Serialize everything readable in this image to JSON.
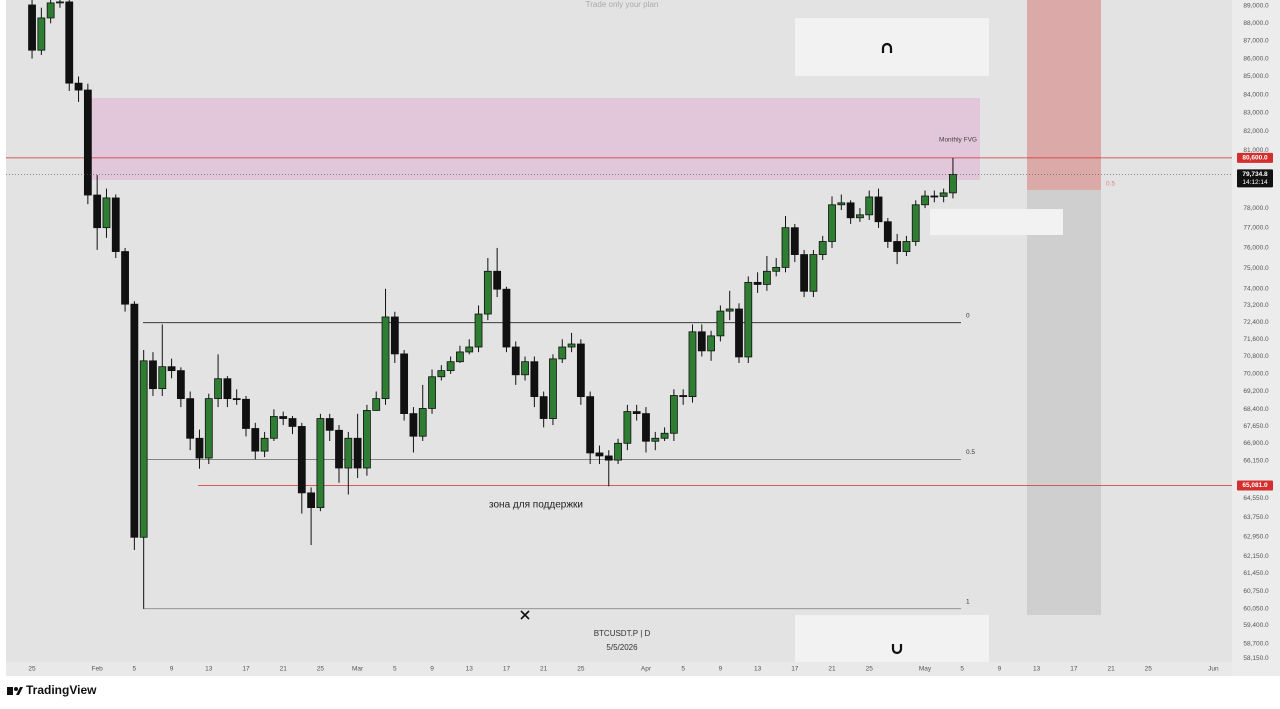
{
  "chart_data": {
    "type": "candlestick",
    "title": "BTCUSDT.P | D",
    "date": "5/5/2026",
    "watermark": "Trade only your plan",
    "annotations": {
      "fvg": "Monthly FVG",
      "support_zone": "зона для поддержки",
      "target": "0.5"
    },
    "x": [
      0,
      1,
      2,
      3,
      4,
      5,
      6,
      7,
      8,
      9,
      10,
      11,
      12,
      13,
      14,
      15,
      16,
      17,
      18,
      19,
      20,
      21,
      22,
      23,
      24,
      25,
      26,
      27,
      28,
      29,
      30,
      31,
      32,
      33,
      34,
      35,
      36,
      37,
      38,
      39,
      40,
      41,
      42,
      43,
      44,
      45,
      46,
      47,
      48,
      49,
      50,
      51,
      52,
      53,
      54,
      55,
      56,
      57,
      58,
      59,
      60,
      61,
      62,
      63,
      64,
      65,
      66,
      67,
      68,
      69,
      70,
      71,
      72,
      73,
      74,
      75,
      76,
      77,
      78,
      79,
      80,
      81,
      82,
      83,
      84,
      85,
      86,
      87,
      88,
      89,
      90,
      91,
      92,
      93,
      94,
      95,
      96,
      97,
      98,
      99
    ],
    "open": [
      89060,
      86470,
      88310,
      89180,
      89240,
      84630,
      84250,
      78670,
      77010,
      78520,
      75820,
      73260,
      62920,
      70600,
      69330,
      70330,
      70150,
      68880,
      67120,
      66260,
      68880,
      69780,
      68880,
      68850,
      67550,
      66560,
      67120,
      68080,
      67990,
      67640,
      64770,
      64150,
      67990,
      67470,
      65830,
      67120,
      65830,
      68350,
      68880,
      72650,
      70920,
      68210,
      67210,
      68440,
      69870,
      70150,
      70560,
      71010,
      71240,
      72790,
      74850,
      73980,
      71240,
      69960,
      70560,
      68970,
      67990,
      70690,
      71240,
      71380,
      68970,
      66480,
      66350,
      66170,
      66900,
      68300,
      68210,
      66990,
      67120,
      67340,
      69020,
      68970,
      71950,
      71060,
      71760,
      72930,
      73030,
      70780,
      74310,
      74210,
      74850,
      75040,
      77010,
      75670,
      73880,
      75670,
      76320,
      78170,
      78270,
      77510,
      77660,
      78570,
      77310,
      76320,
      75820,
      76320,
      78170,
      78620,
      78600,
      78780
    ],
    "high": [
      89350,
      88900,
      89350,
      89350,
      89350,
      85000,
      84600,
      79700,
      79000,
      78700,
      76000,
      73400,
      71100,
      71000,
      72300,
      70700,
      70300,
      69200,
      67500,
      69100,
      70900,
      69900,
      69300,
      69000,
      67800,
      67400,
      68400,
      68300,
      68100,
      67800,
      65000,
      68200,
      68200,
      67700,
      67400,
      68200,
      68600,
      69200,
      74000,
      72900,
      71100,
      68500,
      69500,
      70200,
      70400,
      70800,
      71300,
      71600,
      73200,
      75500,
      76000,
      74100,
      71500,
      70800,
      70800,
      69200,
      70900,
      71600,
      71900,
      71600,
      69200,
      66800,
      66600,
      67100,
      68600,
      68600,
      68500,
      67400,
      67600,
      69300,
      69300,
      72300,
      72300,
      72000,
      73200,
      73900,
      73300,
      74600,
      74800,
      75600,
      75500,
      77600,
      77200,
      75900,
      75900,
      76600,
      78600,
      78700,
      78400,
      78000,
      78900,
      79000,
      77500,
      76700,
      76600,
      78400,
      78900,
      78900,
      79000,
      80600
    ],
    "low": [
      86000,
      86200,
      88000,
      88900,
      84200,
      83600,
      78200,
      75900,
      76500,
      75500,
      72900,
      62400,
      60050,
      69000,
      69000,
      69800,
      68500,
      66600,
      65800,
      66000,
      68500,
      68500,
      68600,
      67200,
      66200,
      66300,
      67000,
      67700,
      67300,
      63900,
      62600,
      64000,
      67000,
      65200,
      64700,
      65400,
      65500,
      68500,
      68600,
      70500,
      67900,
      66500,
      67000,
      68200,
      69700,
      70000,
      70500,
      70900,
      71000,
      72500,
      73600,
      71000,
      69500,
      69700,
      68500,
      67600,
      67700,
      70500,
      71000,
      68600,
      66000,
      66000,
      65050,
      66000,
      66600,
      67900,
      66500,
      66600,
      67000,
      67000,
      68600,
      68700,
      70800,
      70600,
      71500,
      72500,
      70500,
      70500,
      73800,
      73900,
      74600,
      74800,
      75300,
      73600,
      73600,
      75400,
      76000,
      77900,
      77200,
      77300,
      77400,
      77000,
      76000,
      75200,
      75600,
      76100,
      78000,
      78300,
      78300,
      78500
    ],
    "close": [
      86470,
      88310,
      89180,
      89240,
      84630,
      84250,
      78670,
      77010,
      78520,
      75820,
      73260,
      62920,
      70600,
      69330,
      70330,
      70150,
      68880,
      67120,
      66260,
      68880,
      69780,
      68880,
      68850,
      67550,
      66560,
      67120,
      68080,
      67990,
      67640,
      64770,
      64150,
      67990,
      67470,
      65830,
      67120,
      65830,
      68350,
      68880,
      72650,
      70920,
      68210,
      67210,
      68440,
      69870,
      70150,
      70560,
      71010,
      71240,
      72790,
      74850,
      73980,
      71240,
      69960,
      70560,
      68970,
      67990,
      70690,
      71240,
      71380,
      68970,
      66480,
      66350,
      66170,
      66900,
      68300,
      68210,
      66990,
      67120,
      67340,
      69020,
      68970,
      71950,
      71060,
      71760,
      72930,
      73030,
      70780,
      74310,
      74210,
      74850,
      75040,
      77010,
      75670,
      73880,
      75670,
      76320,
      78170,
      78270,
      77510,
      77660,
      78570,
      77310,
      76320,
      75820,
      76320,
      78170,
      78620,
      78600,
      78780,
      79734.8
    ],
    "up_color": "#2e7d32",
    "down_color": "#111111",
    "xlim": [
      -2.8,
      129
    ],
    "xticks": [
      {
        "value": 0,
        "label": "25"
      },
      {
        "value": 7,
        "label": "Feb"
      },
      {
        "value": 11,
        "label": "5"
      },
      {
        "value": 15,
        "label": "9"
      },
      {
        "value": 19,
        "label": "13"
      },
      {
        "value": 23,
        "label": "17"
      },
      {
        "value": 27,
        "label": "21"
      },
      {
        "value": 31,
        "label": "25"
      },
      {
        "value": 35,
        "label": "Mar"
      },
      {
        "value": 39,
        "label": "5"
      },
      {
        "value": 43,
        "label": "9"
      },
      {
        "value": 47,
        "label": "13"
      },
      {
        "value": 51,
        "label": "17"
      },
      {
        "value": 55,
        "label": "21"
      },
      {
        "value": 59,
        "label": "25"
      },
      {
        "value": 66,
        "label": "Apr"
      },
      {
        "value": 70,
        "label": "5"
      },
      {
        "value": 74,
        "label": "9"
      },
      {
        "value": 78,
        "label": "13"
      },
      {
        "value": 82,
        "label": "17"
      },
      {
        "value": 86,
        "label": "21"
      },
      {
        "value": 90,
        "label": "25"
      },
      {
        "value": 96,
        "label": "May"
      },
      {
        "value": 100,
        "label": "5"
      },
      {
        "value": 104,
        "label": "9"
      },
      {
        "value": 108,
        "label": "13"
      },
      {
        "value": 112,
        "label": "17"
      },
      {
        "value": 116,
        "label": "21"
      },
      {
        "value": 120,
        "label": "25"
      },
      {
        "value": 127,
        "label": "Jun"
      }
    ],
    "ylim": [
      58000,
      89350
    ],
    "log_scale": true,
    "grid": false,
    "yticks": [
      {
        "value": 89000,
        "label": "89,000.0"
      },
      {
        "value": 88000,
        "label": "88,000.0"
      },
      {
        "value": 87000,
        "label": "87,000.0"
      },
      {
        "value": 86000,
        "label": "86,000.0"
      },
      {
        "value": 85000,
        "label": "85,000.0"
      },
      {
        "value": 84000,
        "label": "84,000.0"
      },
      {
        "value": 83000,
        "label": "83,000.0"
      },
      {
        "value": 82000,
        "label": "82,000.0"
      },
      {
        "value": 81000,
        "label": "81,000.0"
      },
      {
        "value": 78000,
        "label": "78,000.0"
      },
      {
        "value": 77000,
        "label": "77,000.0"
      },
      {
        "value": 76000,
        "label": "76,000.0"
      },
      {
        "value": 75000,
        "label": "75,000.0"
      },
      {
        "value": 74000,
        "label": "74,000.0"
      },
      {
        "value": 73200,
        "label": "73,200.0"
      },
      {
        "value": 72400,
        "label": "72,400.0"
      },
      {
        "value": 71600,
        "label": "71,600.0"
      },
      {
        "value": 70800,
        "label": "70,800.0"
      },
      {
        "value": 70000,
        "label": "70,000.0"
      },
      {
        "value": 69200,
        "label": "69,200.0"
      },
      {
        "value": 68400,
        "label": "68,400.0"
      },
      {
        "value": 67650,
        "label": "67,650.0"
      },
      {
        "value": 66900,
        "label": "66,900.0"
      },
      {
        "value": 66150,
        "label": "66,150.0"
      },
      {
        "value": 64550,
        "label": "64,550.0"
      },
      {
        "value": 63750,
        "label": "63,750.0"
      },
      {
        "value": 62950,
        "label": "62,950.0"
      },
      {
        "value": 62150,
        "label": "62,150.0"
      },
      {
        "value": 61450,
        "label": "61,450.0"
      },
      {
        "value": 60750,
        "label": "60,750.0"
      },
      {
        "value": 60050,
        "label": "60,050.0"
      },
      {
        "value": 59400,
        "label": "59,400.0"
      },
      {
        "value": 58700,
        "label": "58,700.0"
      },
      {
        "value": 58150,
        "label": "58,150.0"
      }
    ],
    "price_lines": [
      {
        "value": 80600,
        "label": "80,600.0",
        "color": "#d32f2f"
      },
      {
        "value": 65081,
        "label": "65,081.0",
        "color": "#d32f2f"
      }
    ],
    "last_price": {
      "label": "79,734.8",
      "countdown": "14:12:14"
    },
    "fib_levels": [
      {
        "value": 72380,
        "label": "0",
        "color": "#222222"
      },
      {
        "value": 66200,
        "label": "0.5",
        "color": "#777777"
      },
      {
        "value": 60050,
        "label": "1",
        "color": "#777777"
      }
    ]
  },
  "brand": "TradingView"
}
